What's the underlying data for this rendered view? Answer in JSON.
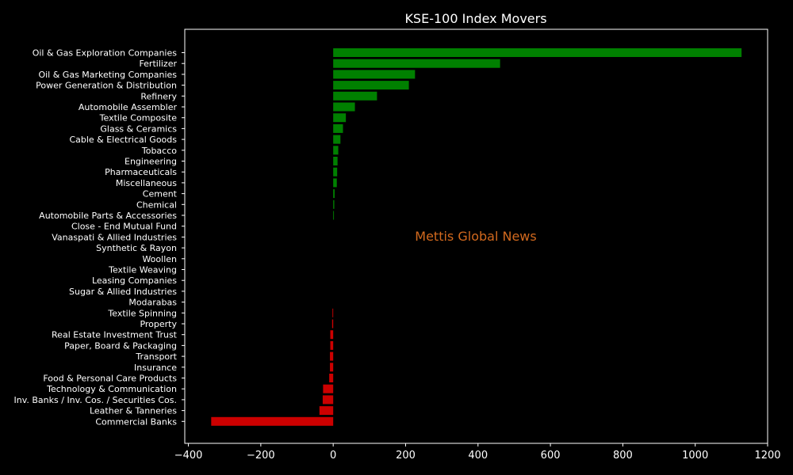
{
  "chart_data": {
    "type": "bar",
    "orientation": "horizontal",
    "title": "KSE-100 Index Movers",
    "watermark": "Mettis Global News",
    "xlim": [
      -410,
      1200
    ],
    "xticks": [
      -400,
      -200,
      0,
      200,
      400,
      600,
      800,
      1000,
      1200
    ],
    "xtick_labels": [
      "−400",
      "−200",
      "0",
      "200",
      "400",
      "600",
      "800",
      "1000",
      "1200"
    ],
    "colors": {
      "positive": "#008000",
      "negative": "#cc0000",
      "background": "#000000",
      "axes": "#ffffff",
      "watermark": "#d2691e"
    },
    "grid": false,
    "categories": [
      "Oil & Gas Exploration Companies",
      "Fertilizer",
      "Oil & Gas Marketing Companies",
      "Power Generation & Distribution",
      "Refinery",
      "Automobile Assembler",
      "Textile Composite",
      "Glass & Ceramics",
      "Cable & Electrical Goods",
      "Tobacco",
      "Engineering",
      "Pharmaceuticals",
      "Miscellaneous",
      "Cement",
      "Chemical",
      "Automobile Parts & Accessories",
      "Close - End Mutual Fund",
      "Vanaspati & Allied Industries",
      "Synthetic & Rayon",
      "Woollen",
      "Textile Weaving",
      "Leasing Companies",
      "Sugar & Allied Industries",
      "Modarabas",
      "Textile Spinning",
      "Property",
      "Real Estate Investment Trust",
      "Paper, Board & Packaging",
      "Transport",
      "Insurance",
      "Food & Personal Care Products",
      "Technology & Communication",
      "Inv. Banks / Inv. Cos. / Securities Cos.",
      "Leather & Tanneries",
      "Commercial Banks"
    ],
    "values": [
      1128,
      461,
      226,
      209,
      121,
      60,
      35,
      27,
      20,
      14,
      12,
      11,
      10,
      4,
      3,
      2,
      0,
      0,
      0,
      0,
      0,
      0,
      0,
      0,
      -2,
      -3,
      -8,
      -8,
      -9,
      -9,
      -11,
      -28,
      -29,
      -38,
      -337
    ]
  }
}
